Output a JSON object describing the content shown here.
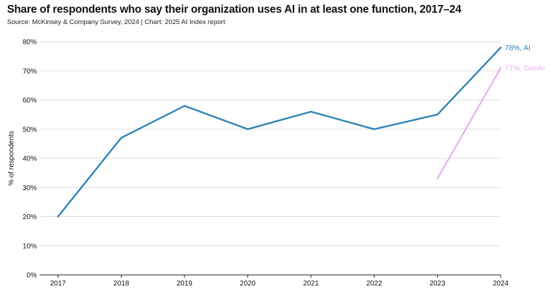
{
  "header": {
    "title": "Share of respondents who say their organization uses AI in at least one function, 2017–24",
    "source": "Source: McKinsey & Company Survey, 2024 | Chart: 2025 AI Index report"
  },
  "colors": {
    "ai": "#2f82b5",
    "genai": "#e9b3f0",
    "grid": "#dddddd",
    "axis": "#222222"
  },
  "chart_data": {
    "type": "line",
    "title": "Share of respondents who say their organization uses AI in at least one function, 2017–24",
    "ylabel": "% of respondents",
    "xlabel": "",
    "x": [
      "2017",
      "2018",
      "2019",
      "2020",
      "2021",
      "2022",
      "2023",
      "2024"
    ],
    "ylim": [
      0,
      80
    ],
    "yticks": [
      0,
      10,
      20,
      30,
      40,
      50,
      60,
      70,
      80
    ],
    "ytick_labels": [
      "0%",
      "10%",
      "20%",
      "30%",
      "40%",
      "50%",
      "60%",
      "70%",
      "80%"
    ],
    "grid": "horizontal",
    "series": [
      {
        "name": "AI",
        "end_label": "78%, AI",
        "color": "#2f82b5",
        "values": [
          20,
          47,
          58,
          50,
          56,
          50,
          55,
          78
        ]
      },
      {
        "name": "GenAI",
        "end_label": "71%, GenAI",
        "color": "#e9b3f0",
        "values": [
          null,
          null,
          null,
          null,
          null,
          null,
          33,
          71
        ]
      }
    ]
  }
}
